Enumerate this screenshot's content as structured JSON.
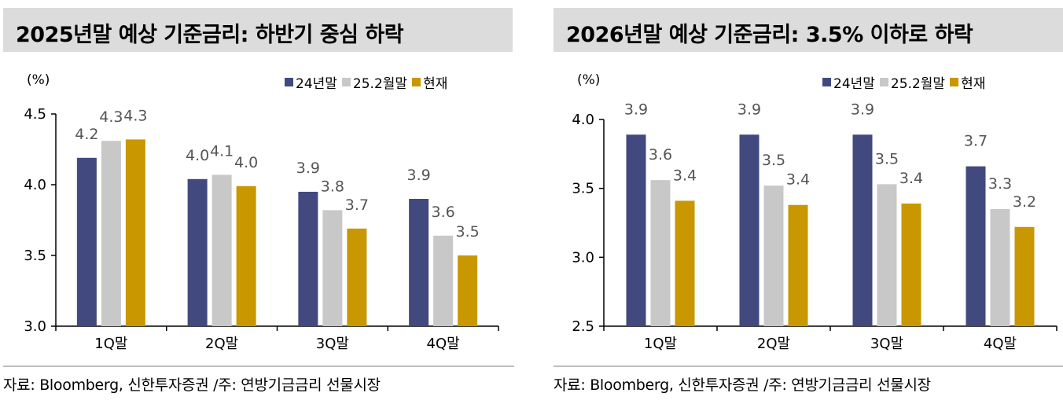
{
  "colors": {
    "series1": "#41497f",
    "series2": "#c8c8c8",
    "series3": "#c99700",
    "axis": "#000000",
    "label": "#555555",
    "title_bg": "#dcdcdc"
  },
  "unit_label": "(%)",
  "source_text": "자료: Bloomberg, 신한투자증권   /주: 연방기금금리 선물시장",
  "chart_data": [
    {
      "type": "bar",
      "title": "2025년말 예상 기준금리: 하반기 중심 하락",
      "ylabel": "(%)",
      "categories": [
        "1Q말",
        "2Q말",
        "3Q말",
        "4Q말"
      ],
      "series": [
        {
          "name": "24년말",
          "values": [
            4.19,
            4.04,
            3.95,
            3.9
          ],
          "labels": [
            "4.2",
            "4.0",
            "3.9",
            "3.9"
          ]
        },
        {
          "name": "25.2월말",
          "values": [
            4.31,
            4.07,
            3.82,
            3.64
          ],
          "labels": [
            "4.3",
            "4.1",
            "3.8",
            "3.6"
          ]
        },
        {
          "name": "현재",
          "values": [
            4.32,
            3.99,
            3.69,
            3.5
          ],
          "labels": [
            "4.3",
            "4.0",
            "3.7",
            "3.5"
          ]
        }
      ],
      "ylim": [
        3.0,
        4.5
      ],
      "yticks": [
        "3.0",
        "3.5",
        "4.0",
        "4.5"
      ]
    },
    {
      "type": "bar",
      "title": "2026년말 예상 기준금리: 3.5% 이하로 하락",
      "ylabel": "(%)",
      "categories": [
        "1Q말",
        "2Q말",
        "3Q말",
        "4Q말"
      ],
      "series": [
        {
          "name": "24년말",
          "values": [
            3.89,
            3.89,
            3.89,
            3.66
          ],
          "labels": [
            "3.9",
            "3.9",
            "3.9",
            "3.7"
          ]
        },
        {
          "name": "25.2월말",
          "values": [
            3.56,
            3.52,
            3.53,
            3.35
          ],
          "labels": [
            "3.6",
            "3.5",
            "3.5",
            "3.3"
          ]
        },
        {
          "name": "현재",
          "values": [
            3.41,
            3.38,
            3.39,
            3.22
          ],
          "labels": [
            "3.4",
            "3.4",
            "3.4",
            "3.2"
          ]
        }
      ],
      "ylim": [
        2.5,
        4.0
      ],
      "yticks": [
        "2.5",
        "3.0",
        "3.5",
        "4.0"
      ]
    }
  ]
}
